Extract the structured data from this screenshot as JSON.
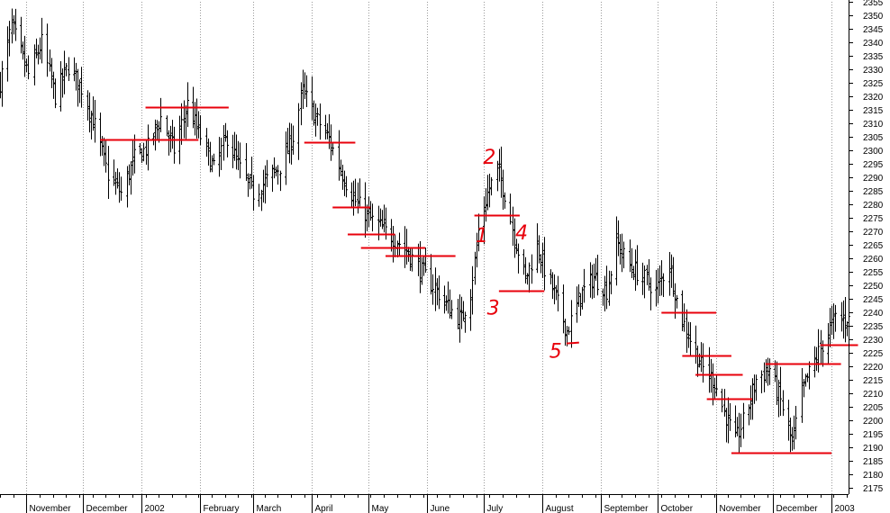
{
  "colors": {
    "bars": "#000000",
    "grid": "#9a9a9a",
    "annotation": "#e8000b",
    "background": "#ffffff"
  },
  "chart_data": {
    "type": "bar",
    "subtype": "ohlc-price-bars",
    "title": "",
    "xlabel": "",
    "ylabel": "",
    "ylim": [
      2172.5,
      2355
    ],
    "y_ticks": [
      2175,
      2180,
      2185,
      2190,
      2195,
      2200,
      2205,
      2210,
      2215,
      2220,
      2225,
      2230,
      2235,
      2240,
      2245,
      2250,
      2255,
      2260,
      2265,
      2270,
      2275,
      2280,
      2285,
      2290,
      2295,
      2300,
      2305,
      2310,
      2315,
      2320,
      2325,
      2330,
      2335,
      2340,
      2345,
      2350,
      2355
    ],
    "grid": true,
    "axis_side": "right",
    "x_start": "2001-10-18",
    "x_end": "2003-01-10",
    "months": [
      {
        "label": "November",
        "start": "2001-11-01"
      },
      {
        "label": "December",
        "start": "2001-12-01"
      },
      {
        "label": "2002",
        "start": "2002-01-01"
      },
      {
        "label": "February",
        "start": "2002-02-01"
      },
      {
        "label": "March",
        "start": "2002-03-01"
      },
      {
        "label": "April",
        "start": "2002-04-01"
      },
      {
        "label": "May",
        "start": "2002-05-01"
      },
      {
        "label": "June",
        "start": "2002-06-01"
      },
      {
        "label": "July",
        "start": "2002-07-01"
      },
      {
        "label": "August",
        "start": "2002-08-01"
      },
      {
        "label": "September",
        "start": "2002-09-01"
      },
      {
        "label": "October",
        "start": "2002-10-01"
      },
      {
        "label": "November",
        "start": "2002-11-01"
      },
      {
        "label": "December",
        "start": "2002-12-01"
      },
      {
        "label": "2003",
        "start": "2003-01-01"
      }
    ],
    "price_path": [
      {
        "date": "2001-10-18",
        "close": 2325
      },
      {
        "date": "2001-10-24",
        "close": 2346
      },
      {
        "date": "2001-11-02",
        "close": 2328
      },
      {
        "date": "2001-11-09",
        "close": 2340
      },
      {
        "date": "2001-11-16",
        "close": 2320
      },
      {
        "date": "2001-11-23",
        "close": 2331
      },
      {
        "date": "2001-11-30",
        "close": 2323
      },
      {
        "date": "2001-12-07",
        "close": 2309
      },
      {
        "date": "2001-12-14",
        "close": 2291
      },
      {
        "date": "2001-12-21",
        "close": 2284
      },
      {
        "date": "2001-12-28",
        "close": 2297
      },
      {
        "date": "2002-01-04",
        "close": 2301
      },
      {
        "date": "2002-01-11",
        "close": 2312
      },
      {
        "date": "2002-01-18",
        "close": 2300
      },
      {
        "date": "2002-01-25",
        "close": 2317
      },
      {
        "date": "2002-02-01",
        "close": 2305
      },
      {
        "date": "2002-02-08",
        "close": 2293
      },
      {
        "date": "2002-02-15",
        "close": 2305
      },
      {
        "date": "2002-02-22",
        "close": 2293
      },
      {
        "date": "2002-03-01",
        "close": 2284
      },
      {
        "date": "2002-03-08",
        "close": 2289
      },
      {
        "date": "2002-03-15",
        "close": 2294
      },
      {
        "date": "2002-03-22",
        "close": 2305
      },
      {
        "date": "2002-03-27",
        "close": 2322
      },
      {
        "date": "2002-04-03",
        "close": 2312
      },
      {
        "date": "2002-04-10",
        "close": 2304
      },
      {
        "date": "2002-04-17",
        "close": 2291
      },
      {
        "date": "2002-04-24",
        "close": 2281
      },
      {
        "date": "2002-05-01",
        "close": 2275
      },
      {
        "date": "2002-05-08",
        "close": 2271
      },
      {
        "date": "2002-05-15",
        "close": 2267
      },
      {
        "date": "2002-05-22",
        "close": 2262
      },
      {
        "date": "2002-05-29",
        "close": 2255
      },
      {
        "date": "2002-06-05",
        "close": 2249
      },
      {
        "date": "2002-06-12",
        "close": 2242
      },
      {
        "date": "2002-06-19",
        "close": 2237
      },
      {
        "date": "2002-06-24",
        "close": 2248
      },
      {
        "date": "2002-06-28",
        "close": 2270
      },
      {
        "date": "2002-07-03",
        "close": 2284
      },
      {
        "date": "2002-07-08",
        "close": 2293
      },
      {
        "date": "2002-07-12",
        "close": 2284
      },
      {
        "date": "2002-07-17",
        "close": 2268
      },
      {
        "date": "2002-07-23",
        "close": 2252
      },
      {
        "date": "2002-07-29",
        "close": 2265
      },
      {
        "date": "2002-08-02",
        "close": 2256
      },
      {
        "date": "2002-08-08",
        "close": 2245
      },
      {
        "date": "2002-08-14",
        "close": 2233
      },
      {
        "date": "2002-08-21",
        "close": 2246
      },
      {
        "date": "2002-08-28",
        "close": 2253
      },
      {
        "date": "2002-09-04",
        "close": 2248
      },
      {
        "date": "2002-09-09",
        "close": 2266
      },
      {
        "date": "2002-09-16",
        "close": 2257
      },
      {
        "date": "2002-09-23",
        "close": 2253
      },
      {
        "date": "2002-09-30",
        "close": 2248
      },
      {
        "date": "2002-10-07",
        "close": 2258
      },
      {
        "date": "2002-10-12",
        "close": 2241
      },
      {
        "date": "2002-10-18",
        "close": 2230
      },
      {
        "date": "2002-10-24",
        "close": 2220
      },
      {
        "date": "2002-10-31",
        "close": 2214
      },
      {
        "date": "2002-11-05",
        "close": 2203
      },
      {
        "date": "2002-11-11",
        "close": 2192
      },
      {
        "date": "2002-11-16",
        "close": 2201
      },
      {
        "date": "2002-11-22",
        "close": 2215
      },
      {
        "date": "2002-11-29",
        "close": 2219
      },
      {
        "date": "2002-12-05",
        "close": 2207
      },
      {
        "date": "2002-12-11",
        "close": 2191
      },
      {
        "date": "2002-12-16",
        "close": 2210
      },
      {
        "date": "2002-12-21",
        "close": 2219
      },
      {
        "date": "2002-12-27",
        "close": 2228
      },
      {
        "date": "2003-01-03",
        "close": 2238
      },
      {
        "date": "2003-01-08",
        "close": 2237
      }
    ],
    "horizontal_lines": [
      {
        "start": "2001-12-10",
        "end": "2002-01-31",
        "value": 2304
      },
      {
        "start": "2002-01-03",
        "end": "2002-02-16",
        "value": 2316
      },
      {
        "start": "2002-03-28",
        "end": "2002-04-24",
        "value": 2303
      },
      {
        "start": "2002-04-12",
        "end": "2002-05-02",
        "value": 2279
      },
      {
        "start": "2002-04-20",
        "end": "2002-05-15",
        "value": 2269
      },
      {
        "start": "2002-04-27",
        "end": "2002-05-31",
        "value": 2264
      },
      {
        "start": "2002-05-10",
        "end": "2002-06-16",
        "value": 2261
      },
      {
        "start": "2002-06-26",
        "end": "2002-07-20",
        "value": 2276
      },
      {
        "start": "2002-07-09",
        "end": "2002-08-02",
        "value": 2248
      },
      {
        "start": "2002-10-03",
        "end": "2002-11-01",
        "value": 2240
      },
      {
        "start": "2002-10-14",
        "end": "2002-11-09",
        "value": 2224
      },
      {
        "start": "2002-10-21",
        "end": "2002-11-15",
        "value": 2217
      },
      {
        "start": "2002-10-27",
        "end": "2002-11-20",
        "value": 2208
      },
      {
        "start": "2002-11-09",
        "end": "2003-01-01",
        "value": 2188
      },
      {
        "start": "2002-11-27",
        "end": "2003-01-06",
        "value": 2221
      },
      {
        "start": "2002-12-26",
        "end": "2003-01-15",
        "value": 2228
      }
    ],
    "wave_labels": [
      {
        "label": "2",
        "date": "2002-07-04",
        "value": 2295
      },
      {
        "label": "1",
        "date": "2002-06-30",
        "value": 2266
      },
      {
        "label": "4",
        "date": "2002-07-21",
        "value": 2267
      },
      {
        "label": "3",
        "date": "2002-07-06",
        "value": 2239
      },
      {
        "label": "5",
        "date": "2002-08-08",
        "value": 2223
      }
    ]
  }
}
